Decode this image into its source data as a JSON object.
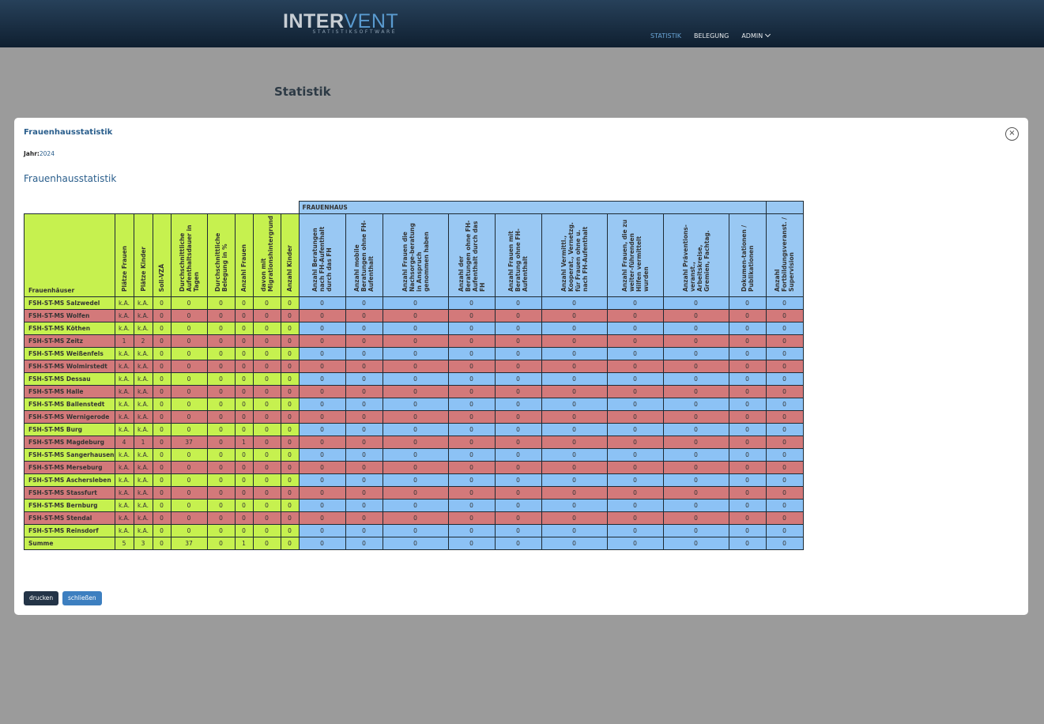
{
  "app": {
    "logo_part1": "INTER",
    "logo_part2": "VENT",
    "logo_subtitle": "STATISTIKSOFTWARE",
    "nav": [
      {
        "label": "STATISTIK",
        "active": true
      },
      {
        "label": "BELEGUNG",
        "active": false
      },
      {
        "label": "ADMIN",
        "active": false
      }
    ],
    "page_title": "Statistik"
  },
  "modal": {
    "title": "Frauenhausstatistik",
    "close_icon": "×",
    "year_label": "Jahr:",
    "year_value": "2024",
    "section_title": "Frauenhausstatistik",
    "group_header": "FRAUENHAUS",
    "name_header": "Frauenhäuser",
    "columns": [
      "Plätze Frauen",
      "Plätze Kinder",
      "Soll-VZÄ",
      "Durchschnittliche Aufenthaltsdauer in Tagen",
      "Durchschnittliche Belegung in %",
      "Anzahl Frauen",
      "davon mit Migrationshintergrund",
      "Anzahl Kinder",
      "Anzahl Beratungen nach FH-Aufenthalt durch das FH",
      "Anzahl mobile Beratungen ohne FH-Aufenthalt",
      "Anzahl Frauen die Nachsorge-beratung in Anspruch genommen haben",
      "Anzahl der Beratungen ohne FH-Aufenthalt durch das FH",
      "Anzahl Frauen mit Beratung ohne FH-Aufenthalt",
      "Anzahl Vermittl., Kooperat., Vernetzg. für Frauen ohne u. nach FH-Aufenthalt",
      "Anzahl Frauen, die zu weiter-führenden Hilfen vermittelt wurden",
      "Anzahl Präventions-veranst., Arbeitskreise, Gremien, Fachtag.",
      "Dokumen-tationen / Publikationen",
      "Anzahl Fortbildungsveranst. / Supervision"
    ],
    "rows": [
      {
        "name": "FSH-ST-MS Salzwedel",
        "values": [
          "k.A.",
          "k.A.",
          "0",
          "0",
          "0",
          "0",
          "0",
          "0",
          "0",
          "0",
          "0",
          "0",
          "0",
          "0",
          "0",
          "0",
          "0",
          "0"
        ]
      },
      {
        "name": "FSH-ST-MS Wolfen",
        "values": [
          "k.A.",
          "k.A.",
          "0",
          "0",
          "0",
          "0",
          "0",
          "0",
          "0",
          "0",
          "0",
          "0",
          "0",
          "0",
          "0",
          "0",
          "0",
          "0"
        ]
      },
      {
        "name": "FSH-ST-MS Köthen",
        "values": [
          "k.A.",
          "k.A.",
          "0",
          "0",
          "0",
          "0",
          "0",
          "0",
          "0",
          "0",
          "0",
          "0",
          "0",
          "0",
          "0",
          "0",
          "0",
          "0"
        ]
      },
      {
        "name": "FSH-ST-MS Zeitz",
        "values": [
          "1",
          "2",
          "0",
          "0",
          "0",
          "0",
          "0",
          "0",
          "0",
          "0",
          "0",
          "0",
          "0",
          "0",
          "0",
          "0",
          "0",
          "0"
        ]
      },
      {
        "name": "FSH-ST-MS Weißenfels",
        "values": [
          "k.A.",
          "k.A.",
          "0",
          "0",
          "0",
          "0",
          "0",
          "0",
          "0",
          "0",
          "0",
          "0",
          "0",
          "0",
          "0",
          "0",
          "0",
          "0"
        ]
      },
      {
        "name": "FSH-ST-MS Wolmirstedt",
        "values": [
          "k.A.",
          "k.A.",
          "0",
          "0",
          "0",
          "0",
          "0",
          "0",
          "0",
          "0",
          "0",
          "0",
          "0",
          "0",
          "0",
          "0",
          "0",
          "0"
        ]
      },
      {
        "name": "FSH-ST-MS Dessau",
        "values": [
          "k.A.",
          "k.A.",
          "0",
          "0",
          "0",
          "0",
          "0",
          "0",
          "0",
          "0",
          "0",
          "0",
          "0",
          "0",
          "0",
          "0",
          "0",
          "0"
        ]
      },
      {
        "name": "FSH-ST-MS Halle",
        "values": [
          "k.A.",
          "k.A.",
          "0",
          "0",
          "0",
          "0",
          "0",
          "0",
          "0",
          "0",
          "0",
          "0",
          "0",
          "0",
          "0",
          "0",
          "0",
          "0"
        ]
      },
      {
        "name": "FSH-ST-MS Ballenstedt",
        "values": [
          "k.A.",
          "k.A.",
          "0",
          "0",
          "0",
          "0",
          "0",
          "0",
          "0",
          "0",
          "0",
          "0",
          "0",
          "0",
          "0",
          "0",
          "0",
          "0"
        ]
      },
      {
        "name": "FSH-ST-MS Wernigerode",
        "values": [
          "k.A.",
          "k.A.",
          "0",
          "0",
          "0",
          "0",
          "0",
          "0",
          "0",
          "0",
          "0",
          "0",
          "0",
          "0",
          "0",
          "0",
          "0",
          "0"
        ]
      },
      {
        "name": "FSH-ST-MS Burg",
        "values": [
          "k.A.",
          "k.A.",
          "0",
          "0",
          "0",
          "0",
          "0",
          "0",
          "0",
          "0",
          "0",
          "0",
          "0",
          "0",
          "0",
          "0",
          "0",
          "0"
        ]
      },
      {
        "name": "FSH-ST-MS Magdeburg",
        "values": [
          "4",
          "1",
          "0",
          "37",
          "0",
          "1",
          "0",
          "0",
          "0",
          "0",
          "0",
          "0",
          "0",
          "0",
          "0",
          "0",
          "0",
          "0"
        ]
      },
      {
        "name": "FSH-ST-MS Sangerhausen",
        "values": [
          "k.A.",
          "k.A.",
          "0",
          "0",
          "0",
          "0",
          "0",
          "0",
          "0",
          "0",
          "0",
          "0",
          "0",
          "0",
          "0",
          "0",
          "0",
          "0"
        ]
      },
      {
        "name": "FSH-ST-MS Merseburg",
        "values": [
          "k.A.",
          "k.A.",
          "0",
          "0",
          "0",
          "0",
          "0",
          "0",
          "0",
          "0",
          "0",
          "0",
          "0",
          "0",
          "0",
          "0",
          "0",
          "0"
        ]
      },
      {
        "name": "FSH-ST-MS Aschersleben",
        "values": [
          "k.A.",
          "k.A.",
          "0",
          "0",
          "0",
          "0",
          "0",
          "0",
          "0",
          "0",
          "0",
          "0",
          "0",
          "0",
          "0",
          "0",
          "0",
          "0"
        ]
      },
      {
        "name": "FSH-ST-MS Stassfurt",
        "values": [
          "k.A.",
          "k.A.",
          "0",
          "0",
          "0",
          "0",
          "0",
          "0",
          "0",
          "0",
          "0",
          "0",
          "0",
          "0",
          "0",
          "0",
          "0",
          "0"
        ]
      },
      {
        "name": "FSH-ST-MS Bernburg",
        "values": [
          "k.A.",
          "k.A.",
          "0",
          "0",
          "0",
          "0",
          "0",
          "0",
          "0",
          "0",
          "0",
          "0",
          "0",
          "0",
          "0",
          "0",
          "0",
          "0"
        ]
      },
      {
        "name": "FSH-ST-MS Stendal",
        "values": [
          "k.A.",
          "k.A.",
          "0",
          "0",
          "0",
          "0",
          "0",
          "0",
          "0",
          "0",
          "0",
          "0",
          "0",
          "0",
          "0",
          "0",
          "0",
          "0"
        ]
      },
      {
        "name": "FSH-ST-MS Reinsdorf",
        "values": [
          "k.A.",
          "k.A.",
          "0",
          "0",
          "0",
          "0",
          "0",
          "0",
          "0",
          "0",
          "0",
          "0",
          "0",
          "0",
          "0",
          "0",
          "0",
          "0"
        ]
      }
    ],
    "sum_row": {
      "name": "Summe",
      "values": [
        "5",
        "3",
        "0",
        "37",
        "0",
        "1",
        "0",
        "0",
        "0",
        "0",
        "0",
        "0",
        "0",
        "0",
        "0",
        "0",
        "0",
        "0"
      ]
    },
    "print_button": "drucken",
    "close_button": "schließen"
  },
  "colors": {
    "green": "#c6f14f",
    "red": "#d3797a",
    "blue": "#8cc2f5",
    "nav_active": "#6aa5d6",
    "brand": "#2a5e8c"
  }
}
